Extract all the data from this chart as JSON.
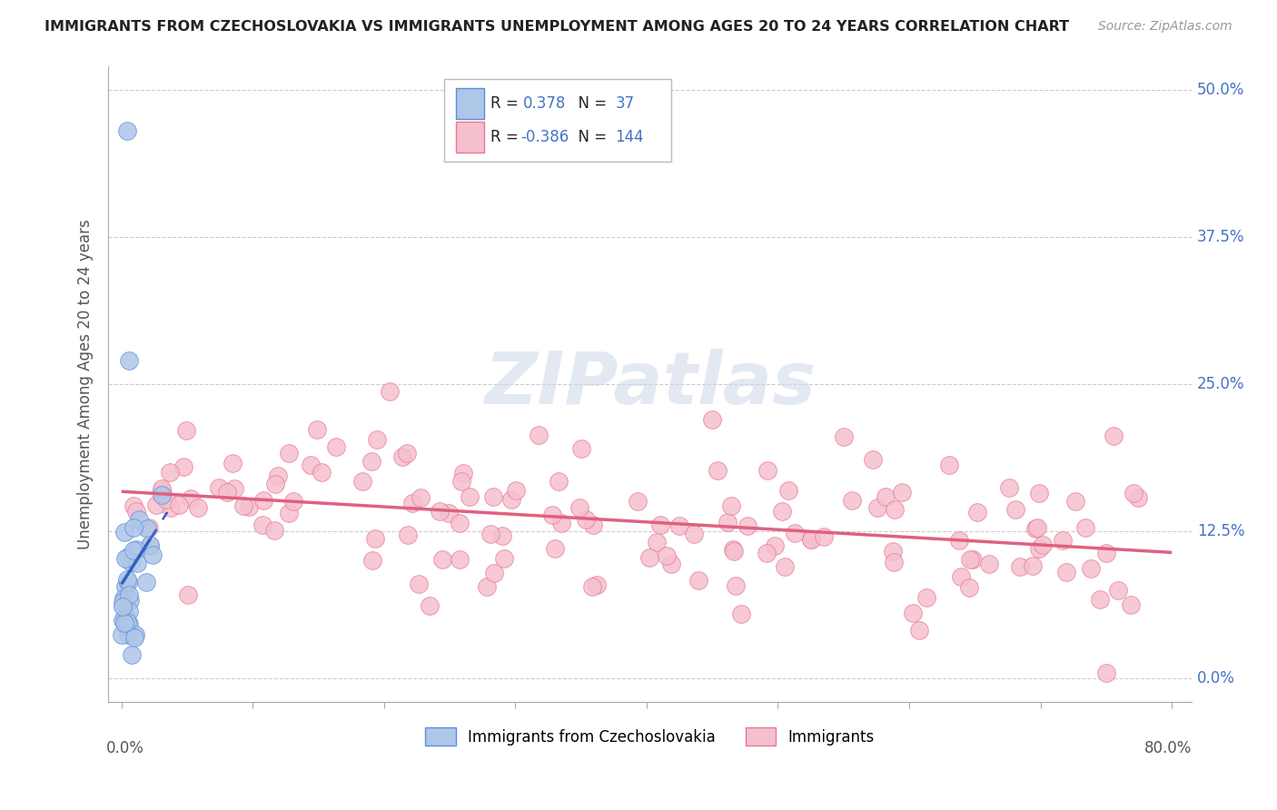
{
  "title": "IMMIGRANTS FROM CZECHOSLOVAKIA VS IMMIGRANTS UNEMPLOYMENT AMONG AGES 20 TO 24 YEARS CORRELATION CHART",
  "source": "Source: ZipAtlas.com",
  "ylabel": "Unemployment Among Ages 20 to 24 years",
  "xmin": 0.0,
  "xmax": 80.0,
  "ymin": -2.0,
  "ymax": 52.0,
  "yticks": [
    0.0,
    12.5,
    25.0,
    37.5,
    50.0
  ],
  "ytick_labels": [
    "0.0%",
    "12.5%",
    "25.0%",
    "37.5%",
    "50.0%"
  ],
  "xtick_label_left": "0.0%",
  "xtick_label_right": "80.0%",
  "blue_R": 0.378,
  "blue_N": 37,
  "pink_R": -0.386,
  "pink_N": 144,
  "blue_color": "#aec6e8",
  "blue_edge_color": "#5b8dd9",
  "blue_line_color": "#3060c0",
  "pink_color": "#f5c0ce",
  "pink_edge_color": "#e87898",
  "pink_line_color": "#e06080",
  "legend_label_blue": "Immigrants from Czechoslovakia",
  "legend_label_pink": "Immigrants",
  "watermark_text": "ZIPatlas",
  "title_fontsize": 11.5,
  "source_fontsize": 10,
  "axis_label_fontsize": 12,
  "tick_label_fontsize": 12,
  "legend_fontsize": 12
}
